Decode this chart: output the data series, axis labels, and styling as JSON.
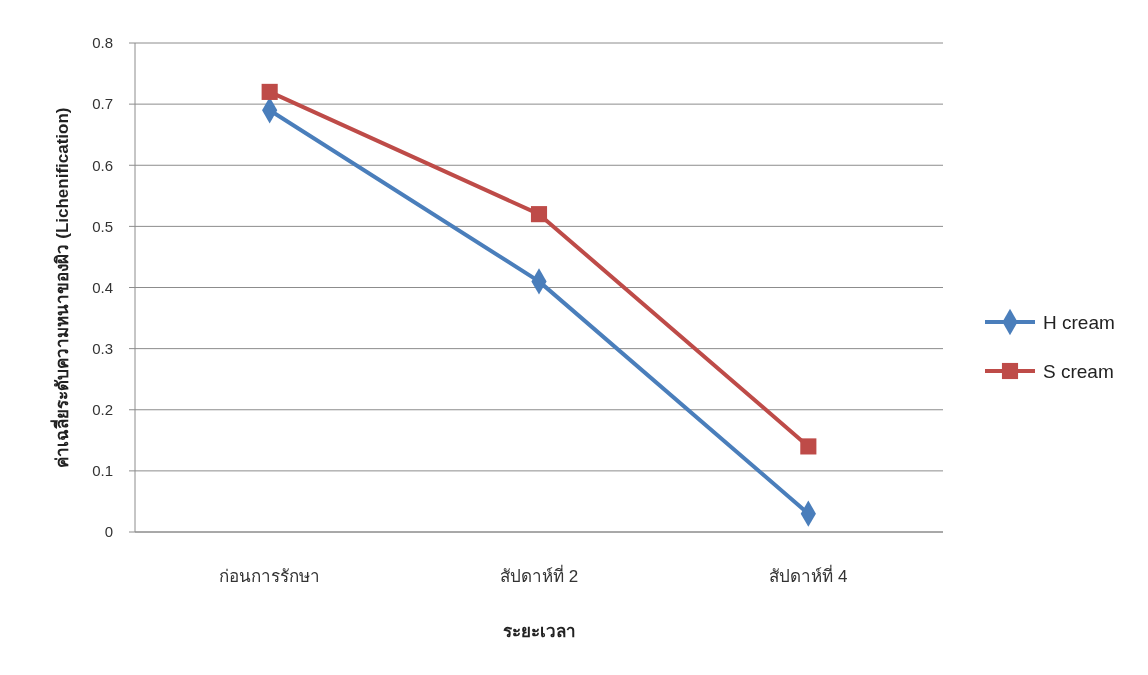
{
  "chart_data": {
    "type": "line",
    "xlabel": "ระยะเวลา",
    "ylabel": "ค่าเฉลี่ยระดับความหนาของผิว  (Lichenification)",
    "categories": [
      "ก่อนการรักษา",
      "สัปดาห์ที่ 2",
      "สัปดาห์ที่ 4"
    ],
    "series": [
      {
        "name": "H cream",
        "color": "#4a7ebb",
        "marker": "diamond",
        "values": [
          0.69,
          0.41,
          0.03
        ]
      },
      {
        "name": "S cream",
        "color": "#be4b48",
        "marker": "square",
        "values": [
          0.72,
          0.52,
          0.14
        ]
      }
    ],
    "ylim": [
      0,
      0.8
    ],
    "yticks": [
      0,
      0.1,
      0.2,
      0.3,
      0.4,
      0.5,
      0.6,
      0.7,
      0.8
    ],
    "grid": "y",
    "legend": "right",
    "line_style": "solid"
  }
}
